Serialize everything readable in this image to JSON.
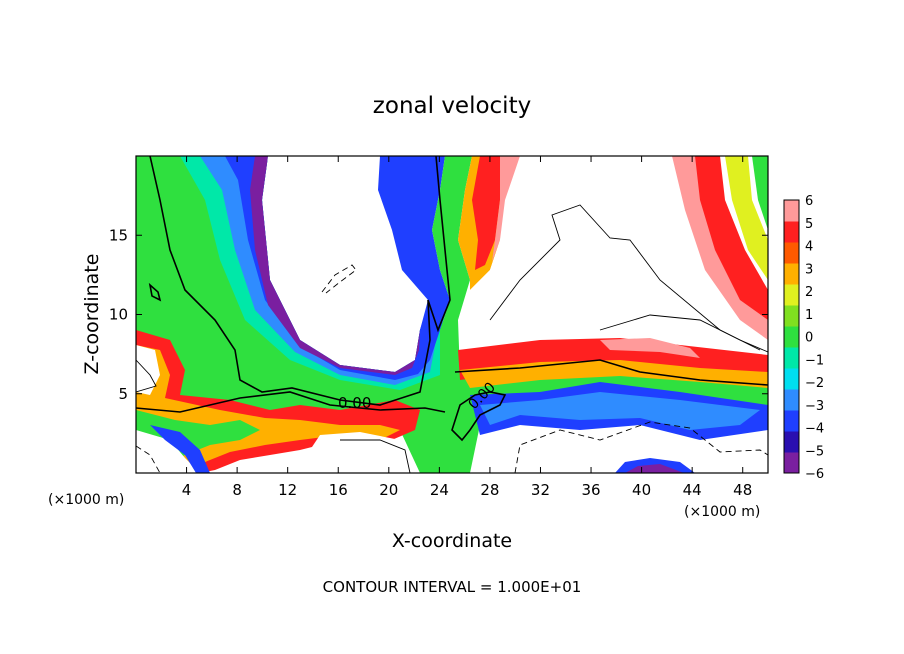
{
  "chart_data": {
    "type": "heatmap",
    "title": "zonal velocity",
    "xlabel": "X-coordinate",
    "ylabel": "Z-coordinate",
    "x_unit_label": "(×1000 m)",
    "x_unit_label_right": "(×1000 m)",
    "xlim": [
      0,
      50
    ],
    "ylim": [
      0,
      20
    ],
    "x_ticks": [
      4,
      8,
      12,
      16,
      20,
      24,
      28,
      32,
      36,
      40,
      44,
      48
    ],
    "x_tick_labels": [
      "4",
      "8",
      "12",
      "16",
      "20",
      "24",
      "28",
      "32",
      "36",
      "40",
      "44",
      "48"
    ],
    "y_ticks": [
      5,
      10,
      15
    ],
    "y_tick_labels": [
      "5",
      "10",
      "15"
    ],
    "colorbar": {
      "min": -6,
      "max": 6,
      "tick_labels": [
        "6",
        "5",
        "4",
        "3",
        "2",
        "1",
        "0",
        "−1",
        "−2",
        "−3",
        "−4",
        "−5",
        "−6"
      ],
      "colors": [
        "#7a1fa0",
        "#2a0fb0",
        "#1f3fff",
        "#2f8cff",
        "#00dff0",
        "#00e8a8",
        "#2fe03f",
        "#80e020",
        "#e0f020",
        "#ffb000",
        "#ff5a00",
        "#ff2020",
        "#ff9a9a"
      ]
    },
    "contour_label": "0.00",
    "contour_label_2": "0.00",
    "footer": "CONTOUR INTERVAL = 1.000E+01"
  }
}
